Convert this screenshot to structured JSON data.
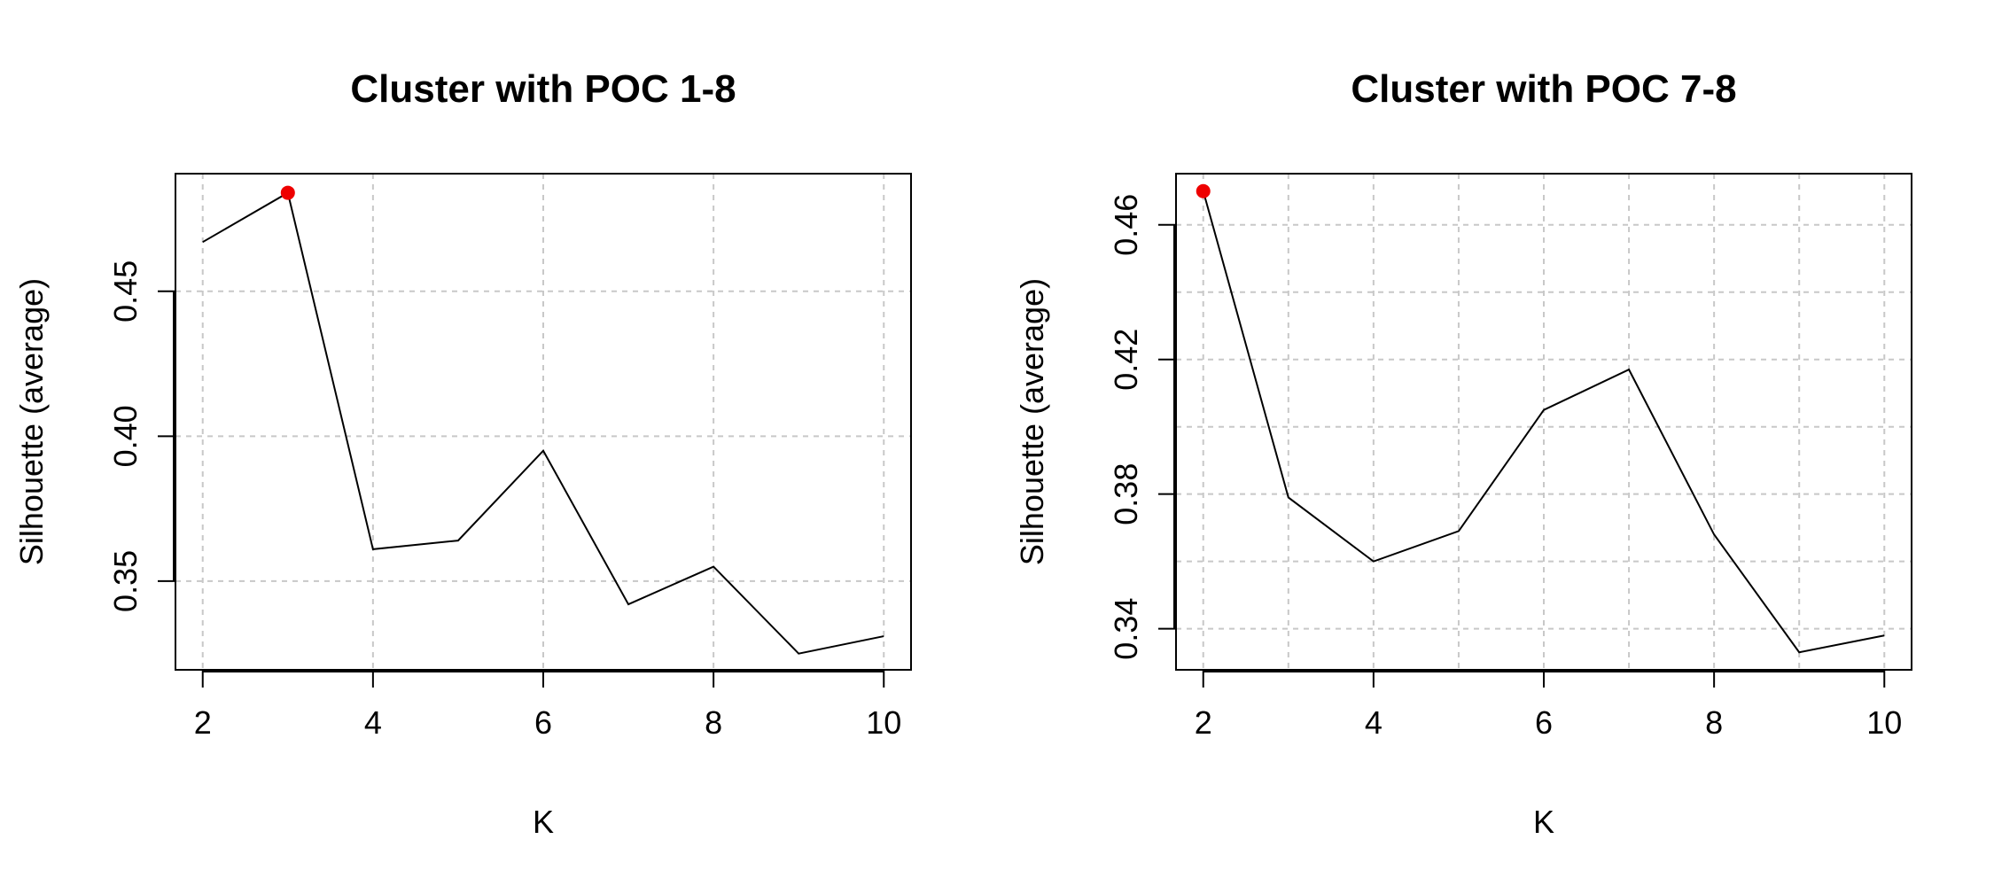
{
  "chart_data": [
    {
      "type": "line",
      "title": "Cluster with POC 1-8",
      "xlabel": "K",
      "ylabel": "Silhouette (average)",
      "x": [
        2,
        3,
        4,
        5,
        6,
        7,
        8,
        9,
        10
      ],
      "values": [
        0.467,
        0.484,
        0.361,
        0.364,
        0.395,
        0.342,
        0.355,
        0.325,
        0.331
      ],
      "highlight": {
        "x": 3,
        "y": 0.484,
        "color": "#ee0000"
      },
      "xlim": [
        1.68,
        10.32
      ],
      "ylim": [
        0.3194,
        0.4906
      ],
      "xticks": [
        2,
        4,
        6,
        8,
        10
      ],
      "xtick_labels": [
        "2",
        "4",
        "6",
        "8",
        "10"
      ],
      "yticks": [
        0.35,
        0.4,
        0.45
      ],
      "ytick_labels": [
        "0.35",
        "0.40",
        "0.45"
      ],
      "grid": true,
      "grid_x": [
        2,
        4,
        6,
        8,
        10
      ],
      "grid_y": [
        0.35,
        0.4,
        0.45
      ],
      "line_color": "#000000",
      "grid_color": "#c8c8c8"
    },
    {
      "type": "line",
      "title": "Cluster with POC 7-8",
      "xlabel": "K",
      "ylabel": "Silhouette (average)",
      "x": [
        2,
        3,
        4,
        5,
        6,
        7,
        8,
        9,
        10
      ],
      "values": [
        0.47,
        0.379,
        0.36,
        0.369,
        0.405,
        0.417,
        0.368,
        0.333,
        0.338
      ],
      "highlight": {
        "x": 2,
        "y": 0.47,
        "color": "#ee0000"
      },
      "xlim": [
        1.68,
        10.32
      ],
      "ylim": [
        0.3278,
        0.4752
      ],
      "xticks": [
        2,
        4,
        6,
        8,
        10
      ],
      "xtick_labels": [
        "2",
        "4",
        "6",
        "8",
        "10"
      ],
      "yticks": [
        0.34,
        0.38,
        0.42,
        0.46
      ],
      "ytick_labels": [
        "0.34",
        "0.38",
        "0.42",
        "0.46"
      ],
      "grid": true,
      "grid_x": [
        2,
        3,
        4,
        5,
        6,
        7,
        8,
        9,
        10
      ],
      "grid_y": [
        0.34,
        0.36,
        0.38,
        0.4,
        0.42,
        0.44,
        0.46
      ],
      "line_color": "#000000",
      "grid_color": "#c8c8c8"
    }
  ]
}
